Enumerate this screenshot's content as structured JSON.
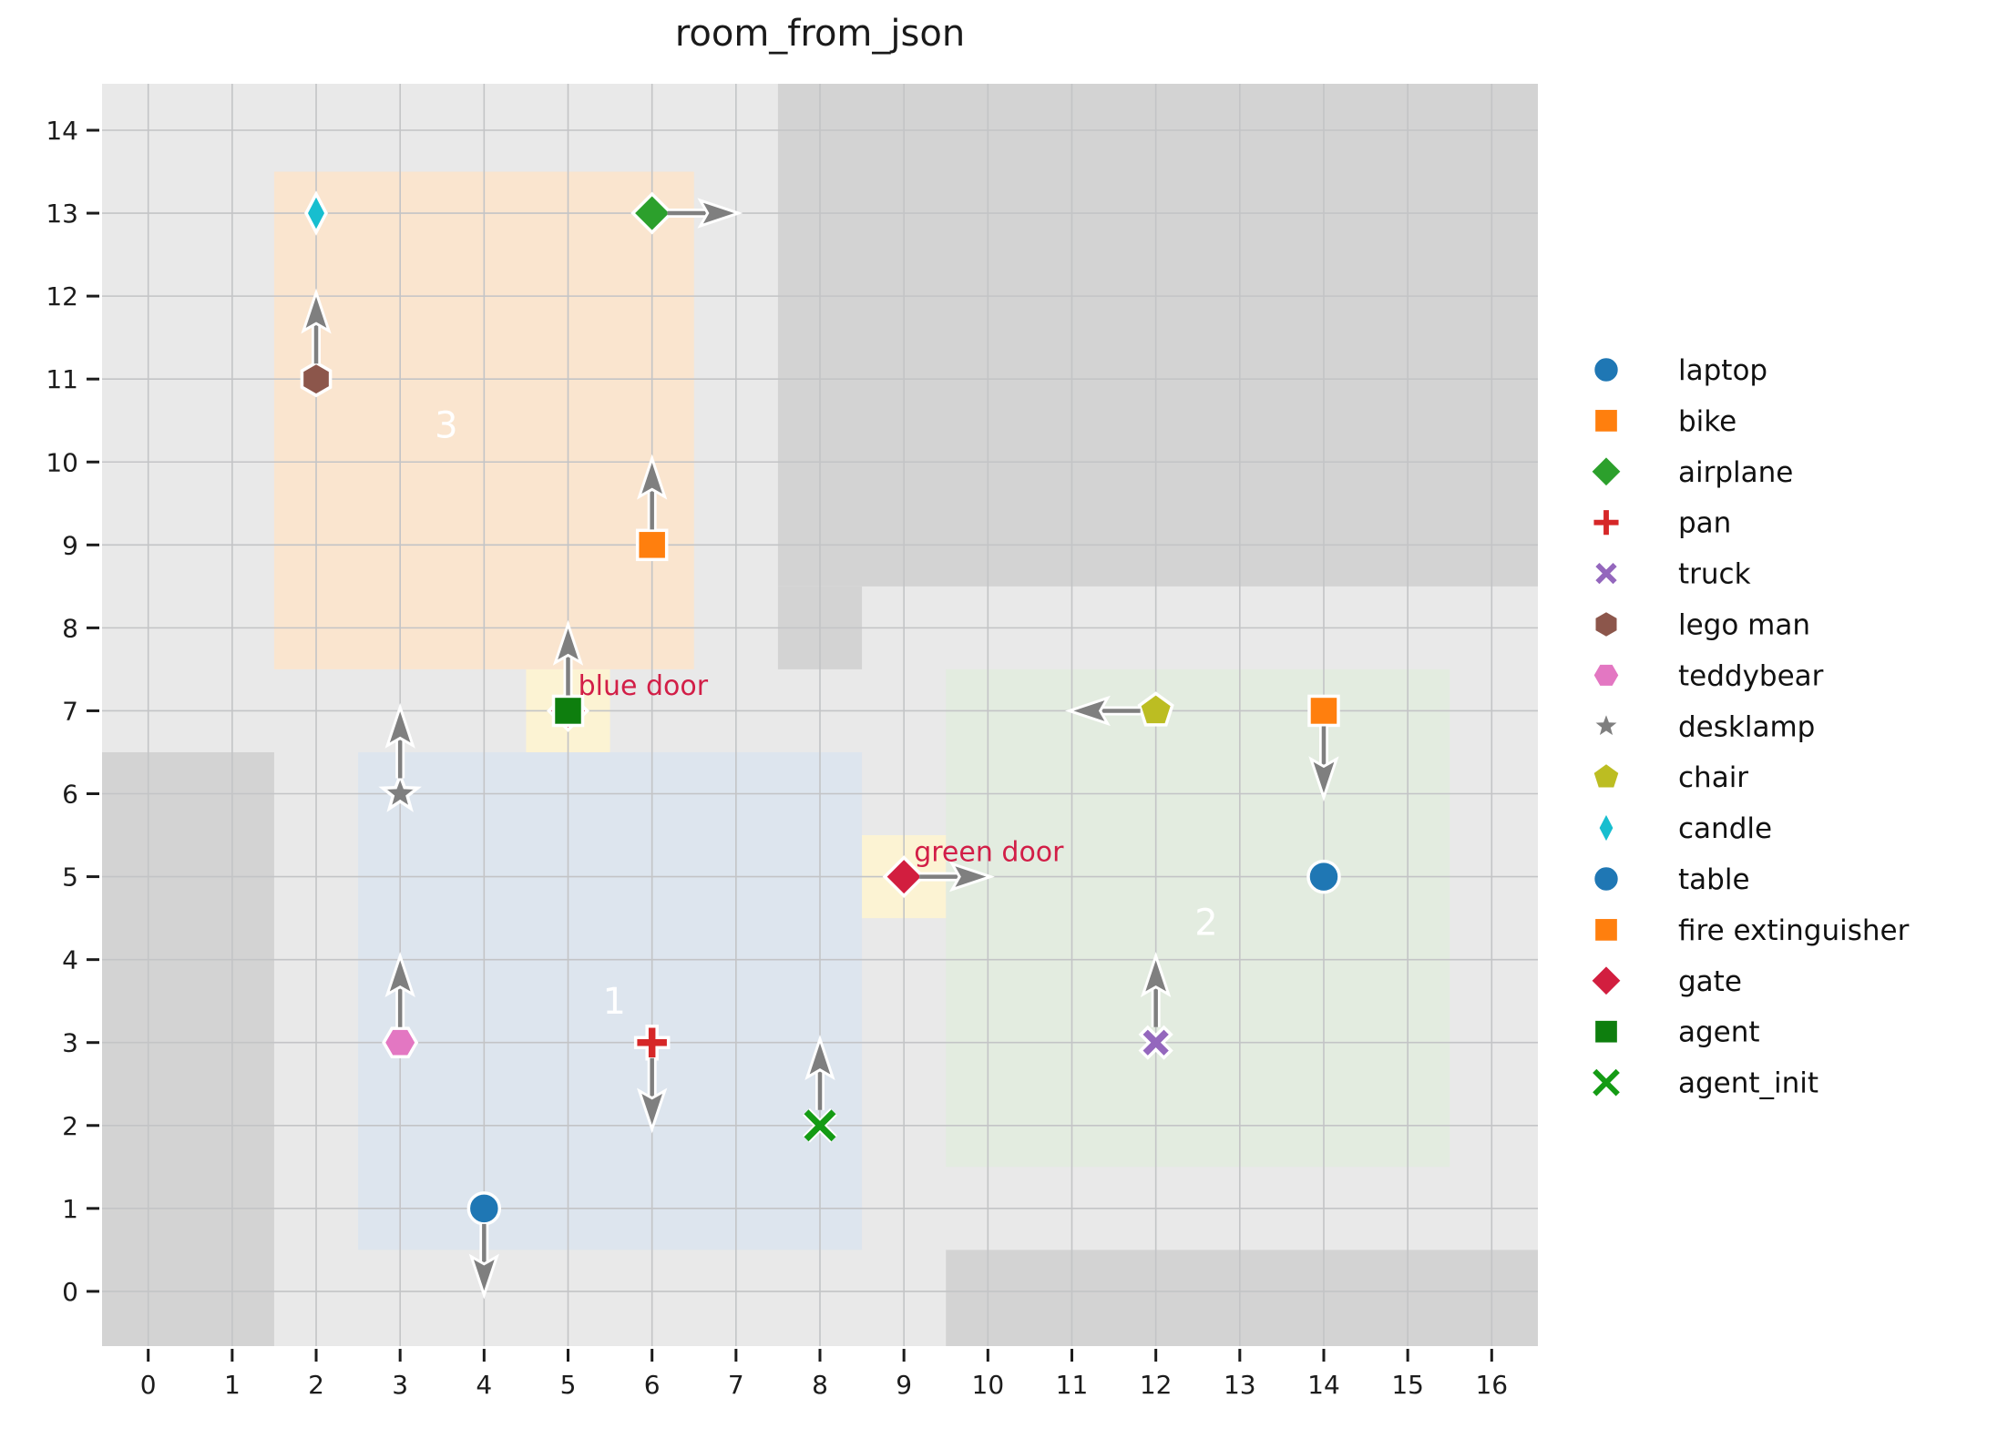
{
  "title": "room_from_json",
  "colors": {
    "figure_bg": "#ffffff",
    "plot_bg": "#e9e9e9",
    "wall": "#d3d3d3",
    "grid": "#c3c4c6",
    "room_3": "#fae5cf",
    "room_1": "#dde5ee",
    "room_2": "#e3ece0",
    "door_tile": "#fcf3d3",
    "arrow": "#7f7f7f",
    "door_text": "#d21e47",
    "tick_text": "#1c1c1c",
    "room_label_text": "#ffffff"
  },
  "chart_data": {
    "type": "scatter",
    "title": "room_from_json",
    "xlabel": "",
    "ylabel": "",
    "xlim": [
      -0.55,
      16.55
    ],
    "ylim": [
      -0.66,
      14.56
    ],
    "x_ticks": [
      0,
      1,
      2,
      3,
      4,
      5,
      6,
      7,
      8,
      9,
      10,
      11,
      12,
      13,
      14,
      15,
      16
    ],
    "y_ticks": [
      0,
      1,
      2,
      3,
      4,
      5,
      6,
      7,
      8,
      9,
      10,
      11,
      12,
      13,
      14
    ],
    "grid": true,
    "legend_position": "right-outside",
    "walls": [
      {
        "name": "wall-left",
        "x0": -0.55,
        "y0": -0.66,
        "x1": 1.5,
        "y1": 6.5
      },
      {
        "name": "wall-top-right",
        "x0": 7.5,
        "y0": 8.5,
        "x1": 16.55,
        "y1": 14.56
      },
      {
        "name": "wall-mid-notch",
        "x0": 7.5,
        "y0": 7.5,
        "x1": 8.5,
        "y1": 8.5
      },
      {
        "name": "wall-bottom-right",
        "x0": 9.5,
        "y0": -0.66,
        "x1": 16.55,
        "y1": 0.5
      }
    ],
    "rooms": [
      {
        "id": "3",
        "color_key": "room_3",
        "x0": 1.5,
        "y0": 7.5,
        "x1": 6.5,
        "y1": 13.5,
        "label": "3",
        "label_x": 3.55,
        "label_y": 10.45
      },
      {
        "id": "1",
        "color_key": "room_1",
        "x0": 2.5,
        "y0": 0.5,
        "x1": 8.5,
        "y1": 6.5,
        "label": "1",
        "label_x": 5.55,
        "label_y": 3.5
      },
      {
        "id": "2",
        "color_key": "room_2",
        "x0": 9.5,
        "y0": 1.5,
        "x1": 15.5,
        "y1": 7.5,
        "label": "2",
        "label_x": 12.6,
        "label_y": 4.45
      }
    ],
    "doors": [
      {
        "name": "blue door",
        "x0": 4.5,
        "y0": 6.5,
        "x1": 5.5,
        "y1": 7.5,
        "label": "blue door",
        "label_x": 5.12,
        "label_y": 7.3
      },
      {
        "name": "green door",
        "x0": 8.5,
        "y0": 4.5,
        "x1": 9.5,
        "y1": 5.5,
        "label": "green door",
        "label_x": 9.12,
        "label_y": 5.3
      }
    ],
    "objects": [
      {
        "name": "gate-blue-door",
        "marker": "diamond",
        "color": "#d21e3f",
        "x": 5,
        "y": 7,
        "arrow": null
      },
      {
        "name": "candle",
        "marker": "thin-diamond",
        "color": "#17becf",
        "x": 2,
        "y": 13,
        "arrow": null
      },
      {
        "name": "airplane",
        "marker": "diamond",
        "color": "#2ca02c",
        "x": 6,
        "y": 13,
        "arrow": "right"
      },
      {
        "name": "lego man",
        "marker": "hexagon-v",
        "color": "#8c564b",
        "x": 2,
        "y": 11,
        "arrow": "up"
      },
      {
        "name": "bike",
        "marker": "square",
        "color": "#ff7f0e",
        "x": 6,
        "y": 9,
        "arrow": "up"
      },
      {
        "name": "agent",
        "marker": "square",
        "color": "#0e7e0e",
        "x": 5,
        "y": 7,
        "arrow": "up"
      },
      {
        "name": "desklamp",
        "marker": "star",
        "color": "#7f7f7f",
        "x": 3,
        "y": 6,
        "arrow": "up"
      },
      {
        "name": "chair",
        "marker": "pentagon",
        "color": "#bcbd22",
        "x": 12,
        "y": 7,
        "arrow": "left"
      },
      {
        "name": "fire extinguisher",
        "marker": "square",
        "color": "#ff7f0e",
        "x": 14,
        "y": 7,
        "arrow": "down"
      },
      {
        "name": "gate",
        "marker": "diamond",
        "color": "#d21e3f",
        "x": 9,
        "y": 5,
        "arrow": "right"
      },
      {
        "name": "laptop",
        "marker": "circle",
        "color": "#1f77b4",
        "x": 14,
        "y": 5,
        "arrow": null
      },
      {
        "name": "teddybear",
        "marker": "hexagon-h",
        "color": "#e377c2",
        "x": 3,
        "y": 3,
        "arrow": "up"
      },
      {
        "name": "pan",
        "marker": "plus",
        "color": "#d62728",
        "x": 6,
        "y": 3,
        "arrow": "down"
      },
      {
        "name": "truck",
        "marker": "x-filled",
        "color": "#9467bd",
        "x": 12,
        "y": 3,
        "arrow": "up"
      },
      {
        "name": "agent_init",
        "marker": "x-line",
        "color": "#149b14",
        "x": 8,
        "y": 2,
        "arrow": "up"
      },
      {
        "name": "table",
        "marker": "circle",
        "color": "#1f77b4",
        "x": 4,
        "y": 1,
        "arrow": "down"
      }
    ],
    "legend": [
      {
        "label": "laptop",
        "marker": "circle",
        "color": "#1f77b4"
      },
      {
        "label": "bike",
        "marker": "square",
        "color": "#ff7f0e"
      },
      {
        "label": "airplane",
        "marker": "diamond",
        "color": "#2ca02c"
      },
      {
        "label": "pan",
        "marker": "plus",
        "color": "#d62728"
      },
      {
        "label": "truck",
        "marker": "x-filled",
        "color": "#9467bd"
      },
      {
        "label": "lego man",
        "marker": "hexagon-v",
        "color": "#8c564b"
      },
      {
        "label": "teddybear",
        "marker": "hexagon-h",
        "color": "#e377c2"
      },
      {
        "label": "desklamp",
        "marker": "star",
        "color": "#7f7f7f"
      },
      {
        "label": "chair",
        "marker": "pentagon",
        "color": "#bcbd22"
      },
      {
        "label": "candle",
        "marker": "thin-diamond",
        "color": "#17becf"
      },
      {
        "label": "table",
        "marker": "circle",
        "color": "#1f77b4"
      },
      {
        "label": "fire extinguisher",
        "marker": "square",
        "color": "#ff7f0e"
      },
      {
        "label": "gate",
        "marker": "diamond",
        "color": "#d21e3f"
      },
      {
        "label": "agent",
        "marker": "square",
        "color": "#0e7e0e"
      },
      {
        "label": "agent_init",
        "marker": "x-line",
        "color": "#149b14"
      }
    ]
  }
}
